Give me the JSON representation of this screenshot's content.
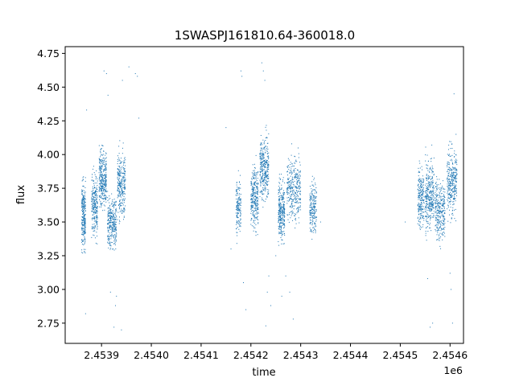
{
  "chart_data": {
    "type": "scatter",
    "title": "1SWASPJ161810.64-360018.0",
    "xlabel": "time",
    "ylabel": "flux",
    "x_offset_label": "1e6",
    "xlim": [
      2453827,
      2454627
    ],
    "ylim": [
      2.6,
      4.8
    ],
    "x_ticks": [
      2453900,
      2454000,
      2454100,
      2454200,
      2454300,
      2454400,
      2454500,
      2454600
    ],
    "x_tick_labels": [
      "2.4539",
      "2.4540",
      "2.4541",
      "2.4542",
      "2.4543",
      "2.4544",
      "2.4545",
      "2.4546"
    ],
    "y_ticks": [
      2.75,
      3.0,
      3.25,
      3.5,
      3.75,
      4.0,
      4.25,
      4.5,
      4.75
    ],
    "y_tick_labels": [
      "2.75",
      "3.00",
      "3.25",
      "3.50",
      "3.75",
      "4.00",
      "4.25",
      "4.50",
      "4.75"
    ],
    "grid": false,
    "legend": "none",
    "marker_color": "#1f77b4",
    "clusters": [
      {
        "x_start": 2453860,
        "x_end": 2453868,
        "y_center": 3.55,
        "y_spread": 0.22,
        "n": 260
      },
      {
        "x_start": 2453880,
        "x_end": 2453892,
        "y_center": 3.62,
        "y_spread": 0.2,
        "n": 260
      },
      {
        "x_start": 2453895,
        "x_end": 2453910,
        "y_center": 3.82,
        "y_spread": 0.18,
        "n": 320
      },
      {
        "x_start": 2453912,
        "x_end": 2453930,
        "y_center": 3.5,
        "y_spread": 0.18,
        "n": 300
      },
      {
        "x_start": 2453932,
        "x_end": 2453948,
        "y_center": 3.78,
        "y_spread": 0.2,
        "n": 280
      },
      {
        "x_start": 2454170,
        "x_end": 2454180,
        "y_center": 3.6,
        "y_spread": 0.18,
        "n": 160
      },
      {
        "x_start": 2454200,
        "x_end": 2454215,
        "y_center": 3.68,
        "y_spread": 0.2,
        "n": 300
      },
      {
        "x_start": 2454218,
        "x_end": 2454236,
        "y_center": 3.9,
        "y_spread": 0.2,
        "n": 340
      },
      {
        "x_start": 2454255,
        "x_end": 2454268,
        "y_center": 3.58,
        "y_spread": 0.2,
        "n": 300
      },
      {
        "x_start": 2454272,
        "x_end": 2454300,
        "y_center": 3.75,
        "y_spread": 0.2,
        "n": 340
      },
      {
        "x_start": 2454318,
        "x_end": 2454332,
        "y_center": 3.6,
        "y_spread": 0.18,
        "n": 200
      },
      {
        "x_start": 2454535,
        "x_end": 2454548,
        "y_center": 3.68,
        "y_spread": 0.2,
        "n": 220
      },
      {
        "x_start": 2454550,
        "x_end": 2454568,
        "y_center": 3.7,
        "y_spread": 0.22,
        "n": 320
      },
      {
        "x_start": 2454570,
        "x_end": 2454590,
        "y_center": 3.58,
        "y_spread": 0.2,
        "n": 300
      },
      {
        "x_start": 2454594,
        "x_end": 2454614,
        "y_center": 3.8,
        "y_spread": 0.22,
        "n": 320
      }
    ],
    "outliers": [
      [
        2453870,
        4.33
      ],
      [
        2453868,
        2.82
      ],
      [
        2453905,
        4.62
      ],
      [
        2453910,
        4.6
      ],
      [
        2453913,
        4.44
      ],
      [
        2453918,
        2.98
      ],
      [
        2453925,
        2.72
      ],
      [
        2453928,
        2.88
      ],
      [
        2453930,
        2.95
      ],
      [
        2453940,
        2.7
      ],
      [
        2453955,
        4.65
      ],
      [
        2453968,
        4.6
      ],
      [
        2453972,
        4.58
      ],
      [
        2453942,
        4.55
      ],
      [
        2453975,
        4.27
      ],
      [
        2454150,
        4.2
      ],
      [
        2454160,
        3.3
      ],
      [
        2454180,
        4.62
      ],
      [
        2454182,
        4.58
      ],
      [
        2454185,
        3.05
      ],
      [
        2454190,
        2.85
      ],
      [
        2454222,
        4.68
      ],
      [
        2454225,
        4.62
      ],
      [
        2454228,
        4.55
      ],
      [
        2454230,
        2.73
      ],
      [
        2454233,
        2.98
      ],
      [
        2454236,
        3.1
      ],
      [
        2454240,
        2.88
      ],
      [
        2454250,
        3.25
      ],
      [
        2454262,
        2.95
      ],
      [
        2454270,
        3.1
      ],
      [
        2454278,
        2.98
      ],
      [
        2454285,
        2.78
      ],
      [
        2454340,
        3.5
      ],
      [
        2454510,
        3.5
      ],
      [
        2454555,
        3.08
      ],
      [
        2454560,
        2.72
      ],
      [
        2454565,
        2.75
      ],
      [
        2454600,
        3.12
      ],
      [
        2454602,
        3.0
      ],
      [
        2454605,
        2.75
      ],
      [
        2454608,
        4.45
      ],
      [
        2454612,
        4.15
      ]
    ]
  }
}
